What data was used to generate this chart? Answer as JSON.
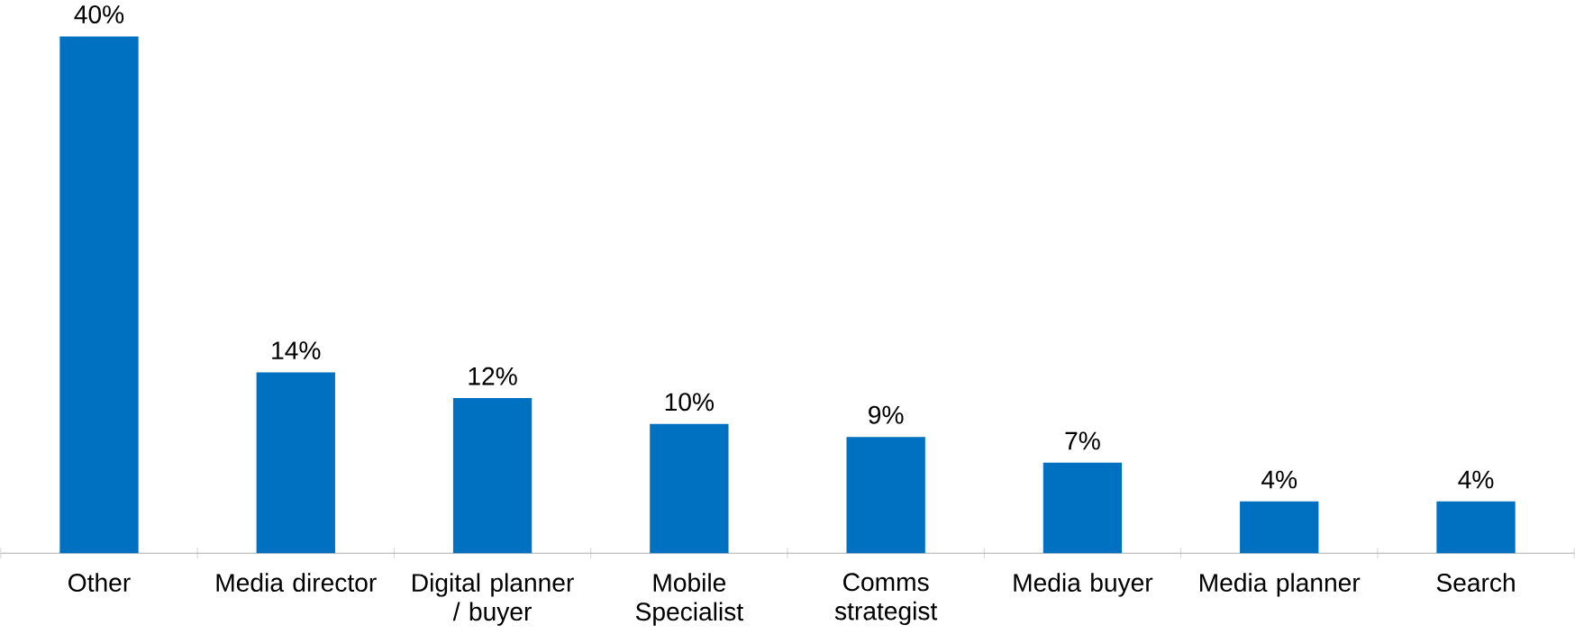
{
  "chart_data": {
    "type": "bar",
    "categories": [
      "Other",
      "Media director",
      "Digital planner / buyer",
      "Mobile Specialist",
      "Comms strategist",
      "Media buyer",
      "Media planner",
      "Search"
    ],
    "values": [
      40,
      14,
      12,
      10,
      9,
      7,
      4,
      4
    ],
    "value_labels": [
      "40%",
      "14%",
      "12%",
      "10%",
      "9%",
      "7%",
      "4%",
      "4%"
    ],
    "color": "#0070c0"
  }
}
